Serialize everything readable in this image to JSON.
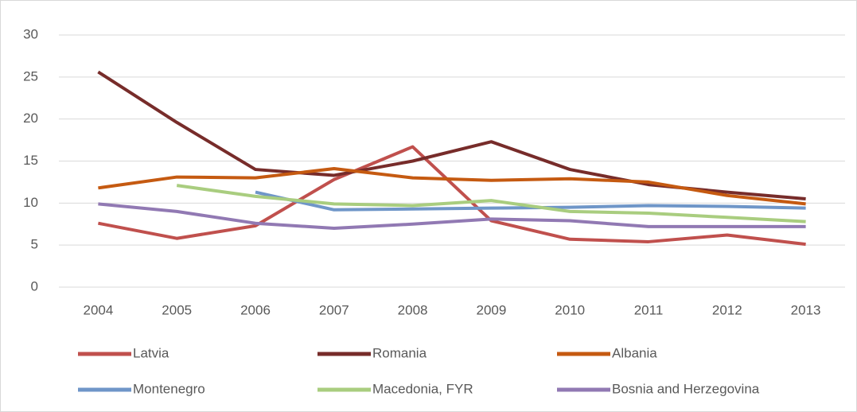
{
  "chart_data": {
    "type": "line",
    "categories": [
      "2004",
      "2005",
      "2006",
      "2007",
      "2008",
      "2009",
      "2010",
      "2011",
      "2012",
      "2013"
    ],
    "series": [
      {
        "name": "Latvia",
        "color": "#c0504d",
        "values": [
          7.6,
          5.8,
          7.3,
          12.8,
          16.7,
          7.9,
          5.7,
          5.4,
          6.2,
          5.1
        ]
      },
      {
        "name": "Romania",
        "color": "#772c2a",
        "values": [
          25.6,
          19.6,
          14.0,
          13.3,
          15.0,
          17.3,
          14.0,
          12.2,
          11.3,
          10.5
        ]
      },
      {
        "name": "Albania",
        "color": "#c55a11",
        "values": [
          11.8,
          13.1,
          13.0,
          14.1,
          13.0,
          12.7,
          12.9,
          12.5,
          10.9,
          9.9
        ]
      },
      {
        "name": "Montenegro",
        "color": "#6f96c8",
        "values": [
          null,
          null,
          11.3,
          9.2,
          9.3,
          9.4,
          9.5,
          9.7,
          9.6,
          9.4
        ]
      },
      {
        "name": "Macedonia, FYR",
        "color": "#a9cd7f",
        "values": [
          null,
          12.1,
          10.8,
          9.9,
          9.7,
          10.3,
          9.0,
          8.8,
          8.3,
          7.8
        ]
      },
      {
        "name": "Bosnia and Herzegovina",
        "color": "#9179b3",
        "values": [
          9.9,
          9.0,
          7.6,
          7.0,
          7.5,
          8.1,
          7.9,
          7.2,
          7.2,
          7.2
        ]
      }
    ],
    "ylim": [
      0,
      30
    ],
    "yticks": [
      0,
      5,
      10,
      15,
      20,
      25,
      30
    ],
    "grid": true,
    "legend": "bottom"
  }
}
